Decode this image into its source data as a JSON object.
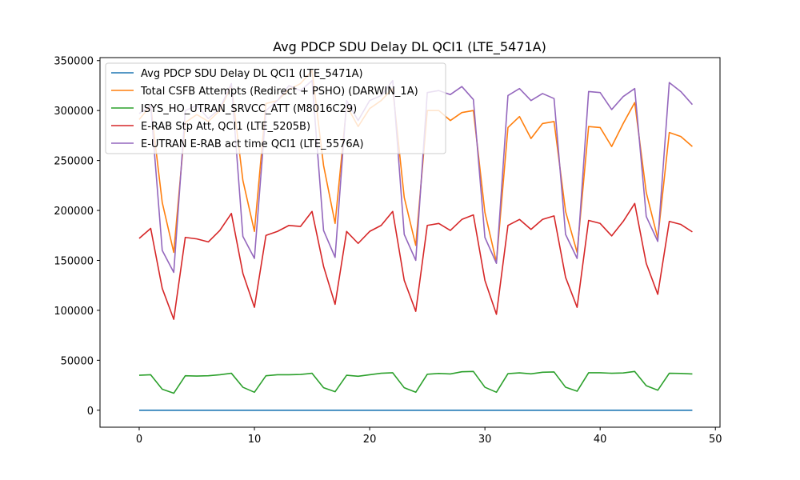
{
  "chart_data": {
    "type": "line",
    "title": "Avg PDCP SDU Delay DL QCI1 (LTE_5471A)",
    "xlabel": "",
    "ylabel": "",
    "xlim": [
      -3.4,
      50.4
    ],
    "ylim": [
      -17000,
      353000
    ],
    "xticks": [
      0,
      10,
      20,
      30,
      40,
      50
    ],
    "yticks": [
      0,
      50000,
      100000,
      150000,
      200000,
      250000,
      300000,
      350000
    ],
    "xtick_labels": [
      "0",
      "10",
      "20",
      "30",
      "40",
      "50"
    ],
    "ytick_labels": [
      "0",
      "50000",
      "100000",
      "150000",
      "200000",
      "250000",
      "300000",
      "350000"
    ],
    "legend_position": "top-left",
    "x": [
      0,
      1,
      2,
      3,
      4,
      5,
      6,
      7,
      8,
      9,
      10,
      11,
      12,
      13,
      14,
      15,
      16,
      17,
      18,
      19,
      20,
      21,
      22,
      23,
      24,
      25,
      26,
      27,
      28,
      29,
      30,
      31,
      32,
      33,
      34,
      35,
      36,
      37,
      38,
      39,
      40,
      41,
      42,
      43,
      44,
      45,
      46,
      47,
      48
    ],
    "series": [
      {
        "name": "Avg PDCP SDU Delay DL QCI1 (LTE_5471A)",
        "color": "#1f77b4",
        "values": [
          5,
          5,
          5,
          5,
          5,
          5,
          5,
          5,
          5,
          5,
          5,
          5,
          5,
          5,
          5,
          5,
          5,
          5,
          5,
          5,
          5,
          5,
          5,
          5,
          5,
          5,
          5,
          5,
          5,
          5,
          5,
          5,
          5,
          5,
          5,
          5,
          5,
          5,
          5,
          5,
          5,
          5,
          5,
          5,
          5,
          5,
          5,
          5,
          5
        ]
      },
      {
        "name": "Total CSFB Attempts (Redirect + PSHO) (DARWIN_1A)",
        "color": "#ff7f0e",
        "values": [
          291000,
          305000,
          208000,
          158000,
          288000,
          296000,
          289000,
          300000,
          325000,
          230000,
          179000,
          307000,
          310000,
          321000,
          327000,
          340000,
          245000,
          187000,
          305000,
          284000,
          302000,
          310000,
          322000,
          213000,
          165000,
          300000,
          300000,
          290000,
          298000,
          300000,
          198000,
          148000,
          283000,
          294000,
          272000,
          287000,
          289000,
          199000,
          158000,
          284000,
          283000,
          264000,
          287000,
          308000,
          218000,
          172000,
          278000,
          274000,
          264000
        ]
      },
      {
        "name": "ISYS_HO_UTRAN_SRVCC_ATT (M8016C29)",
        "color": "#2ca02c",
        "values": [
          35000,
          35500,
          21000,
          17000,
          34500,
          34200,
          34500,
          35500,
          37000,
          23000,
          18000,
          34500,
          35500,
          35500,
          35800,
          37000,
          22500,
          18500,
          35000,
          34000,
          35500,
          37000,
          37500,
          22500,
          18000,
          36000,
          36800,
          36300,
          38500,
          38800,
          23000,
          18000,
          36600,
          37400,
          36400,
          38000,
          38300,
          23000,
          19000,
          37500,
          37500,
          37000,
          37300,
          38800,
          24500,
          20000,
          37000,
          36800,
          36300
        ]
      },
      {
        "name": "E-RAB Stp Att, QCI1 (LTE_5205B)",
        "color": "#d62728",
        "values": [
          172000,
          182000,
          122000,
          91000,
          173000,
          171500,
          168500,
          180000,
          197000,
          137000,
          103000,
          175000,
          179000,
          185000,
          184000,
          199000,
          144000,
          106000,
          179000,
          167000,
          179000,
          185000,
          199000,
          130000,
          99000,
          185000,
          187000,
          180000,
          191000,
          195500,
          130000,
          96000,
          185000,
          191000,
          181000,
          191000,
          194500,
          133000,
          103000,
          190000,
          187000,
          174500,
          189000,
          207000,
          147000,
          116000,
          189000,
          186000,
          178500
        ]
      },
      {
        "name": "E-UTRAN E-RAB act time QCI1 (LTE_5576A)",
        "color": "#9467bd",
        "values": [
          297000,
          305000,
          160000,
          138000,
          300000,
          305000,
          292000,
          302000,
          327000,
          174000,
          152000,
          300000,
          310000,
          325000,
          320000,
          330000,
          180000,
          153000,
          310000,
          290000,
          310000,
          315000,
          330000,
          176000,
          150000,
          318000,
          320000,
          316000,
          324000,
          311000,
          173000,
          147000,
          315000,
          322000,
          310000,
          317000,
          312000,
          176000,
          152000,
          319000,
          318000,
          301000,
          314000,
          322000,
          194000,
          169000,
          328000,
          319000,
          306000
        ]
      }
    ]
  }
}
